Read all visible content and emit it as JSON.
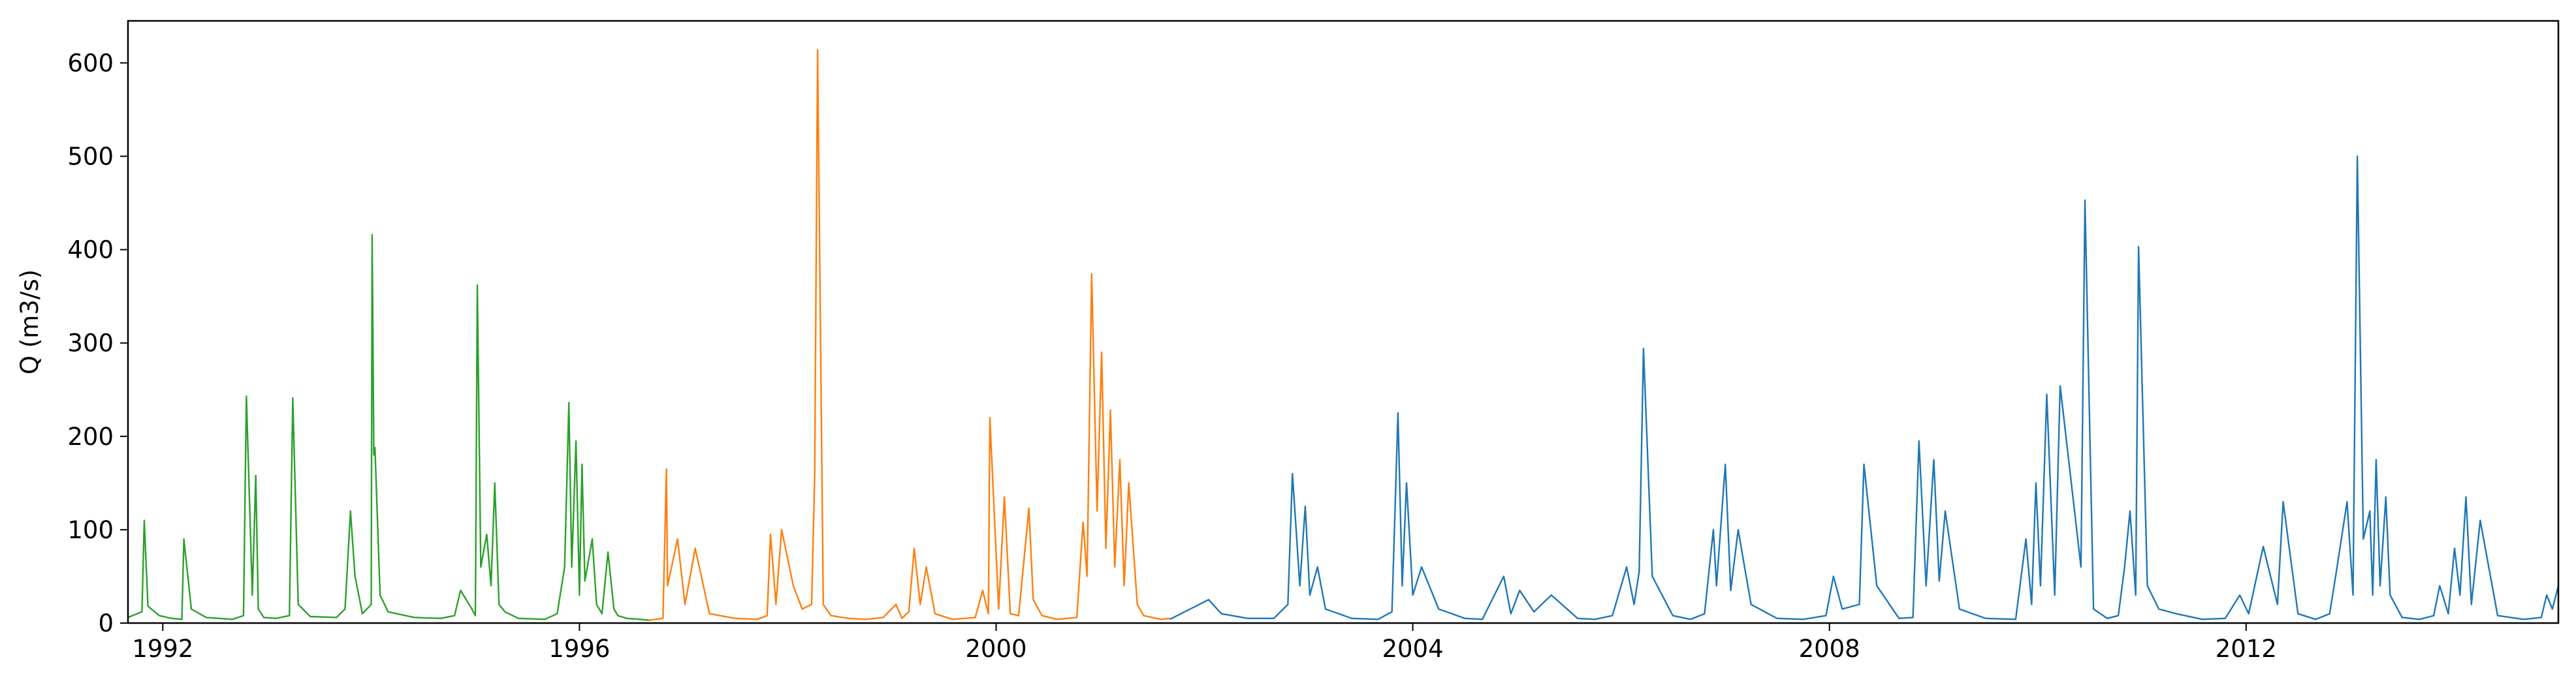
{
  "chart_data": {
    "type": "line",
    "title": "",
    "xlabel": "",
    "ylabel": "Q (m3/s)",
    "xlim": [
      "1991-09-01",
      "2014-12-31"
    ],
    "ylim": [
      0,
      645
    ],
    "x_ticks": [
      "1992",
      "1996",
      "2000",
      "2004",
      "2008",
      "2012"
    ],
    "y_ticks": [
      0,
      100,
      200,
      300,
      400,
      500,
      600
    ],
    "grid": false,
    "legend": "none",
    "series": [
      {
        "color": "#2ca02c",
        "x": [
          "1991-09-01",
          "1991-10-20",
          "1991-10-28",
          "1991-11-10",
          "1991-12-20",
          "1992-02-01",
          "1992-03-08",
          "1992-03-15",
          "1992-04-10",
          "1992-06-01",
          "1992-09-01",
          "1992-10-10",
          "1992-10-20",
          "1992-11-10",
          "1992-11-22",
          "1992-12-01",
          "1992-12-20",
          "1993-02-01",
          "1993-03-20",
          "1993-04-01",
          "1993-04-20",
          "1993-06-01",
          "1993-09-01",
          "1993-10-01",
          "1993-10-20",
          "1993-11-05",
          "1993-12-01",
          "1994-01-01",
          "1994-01-04",
          "1994-01-10",
          "1994-01-14",
          "1994-02-01",
          "1994-03-01",
          "1994-06-01",
          "1994-09-01",
          "1994-10-20",
          "1994-11-10",
          "1994-12-20",
          "1995-01-01",
          "1995-01-08",
          "1995-01-20",
          "1995-02-10",
          "1995-02-25",
          "1995-03-10",
          "1995-03-25",
          "1995-04-15",
          "1995-06-01",
          "1995-09-01",
          "1995-10-15",
          "1995-11-10",
          "1995-11-25",
          "1995-12-05",
          "1995-12-20",
          "1996-01-01",
          "1996-01-10",
          "1996-01-20",
          "1996-02-15",
          "1996-03-01",
          "1996-03-20",
          "1996-04-10",
          "1996-05-01",
          "1996-05-15",
          "1996-06-15",
          "1996-08-01",
          "1996-09-01"
        ],
        "y": [
          6,
          12,
          110,
          18,
          8,
          5,
          4,
          90,
          15,
          6,
          4,
          8,
          243,
          30,
          158,
          15,
          6,
          5,
          8,
          241,
          20,
          7,
          6,
          15,
          120,
          50,
          10,
          20,
          416,
          180,
          188,
          30,
          12,
          6,
          5,
          8,
          35,
          15,
          8,
          362,
          60,
          95,
          40,
          150,
          20,
          12,
          5,
          4,
          10,
          60,
          236,
          60,
          195,
          30,
          170,
          45,
          90,
          20,
          10,
          76,
          15,
          8,
          5,
          4,
          3
        ]
      },
      {
        "color": "#ff7f0e",
        "x": [
          "1996-09-01",
          "1996-10-20",
          "1996-11-01",
          "1996-11-05",
          "1996-12-10",
          "1997-01-05",
          "1997-02-10",
          "1997-04-01",
          "1997-07-01",
          "1997-09-15",
          "1997-10-20",
          "1997-11-01",
          "1997-11-20",
          "1997-12-10",
          "1998-01-20",
          "1998-02-20",
          "1998-03-25",
          "1998-04-05",
          "1998-04-15",
          "1998-05-05",
          "1998-06-01",
          "1998-08-01",
          "1998-10-01",
          "1998-12-01",
          "1999-01-15",
          "1999-02-05",
          "1999-03-01",
          "1999-03-20",
          "1999-04-10",
          "1999-05-01",
          "1999-06-01",
          "1999-08-01",
          "1999-10-20",
          "1999-11-15",
          "1999-12-05",
          "1999-12-10",
          "2000-01-10",
          "2000-01-30",
          "2000-02-20",
          "2000-03-20",
          "2000-04-25",
          "2000-05-10",
          "2000-06-10",
          "2000-08-01",
          "2000-10-10",
          "2000-11-01",
          "2000-11-15",
          "2000-12-01",
          "2000-12-20",
          "2001-01-05",
          "2001-01-20",
          "2001-02-05",
          "2001-02-20",
          "2001-03-10",
          "2001-03-25",
          "2001-04-10",
          "2001-05-10",
          "2001-06-01",
          "2001-08-01",
          "2001-09-01"
        ],
        "y": [
          3,
          5,
          165,
          40,
          90,
          20,
          80,
          10,
          5,
          4,
          8,
          95,
          20,
          100,
          40,
          15,
          20,
          160,
          614,
          20,
          8,
          5,
          4,
          6,
          20,
          5,
          12,
          80,
          20,
          60,
          10,
          4,
          6,
          35,
          10,
          220,
          15,
          135,
          10,
          8,
          123,
          25,
          8,
          4,
          6,
          108,
          50,
          374,
          120,
          290,
          80,
          228,
          60,
          175,
          40,
          150,
          20,
          8,
          4,
          5
        ]
      },
      {
        "color": "#1f77b4",
        "x": [
          "2001-09-01",
          "2002-01-15",
          "2002-03-01",
          "2002-06-01",
          "2002-09-01",
          "2002-10-20",
          "2002-11-05",
          "2002-12-01",
          "2002-12-20",
          "2003-01-05",
          "2003-02-01",
          "2003-03-01",
          "2003-06-01",
          "2003-09-01",
          "2003-10-20",
          "2003-11-10",
          "2003-11-25",
          "2003-12-10",
          "2004-01-01",
          "2004-02-01",
          "2004-04-01",
          "2004-07-01",
          "2004-09-01",
          "2004-11-15",
          "2004-12-10",
          "2005-01-10",
          "2005-03-01",
          "2005-05-01",
          "2005-08-01",
          "2005-10-01",
          "2005-12-01",
          "2006-01-20",
          "2006-02-15",
          "2006-03-05",
          "2006-03-20",
          "2006-04-20",
          "2006-07-01",
          "2006-09-01",
          "2006-10-20",
          "2006-11-20",
          "2006-12-01",
          "2007-01-01",
          "2007-01-20",
          "2007-02-15",
          "2007-04-01",
          "2007-07-01",
          "2007-10-01",
          "2007-12-20",
          "2008-01-15",
          "2008-02-15",
          "2008-04-15",
          "2008-05-01",
          "2008-06-15",
          "2008-09-01",
          "2008-10-20",
          "2008-11-10",
          "2008-12-05",
          "2009-01-01",
          "2009-01-20",
          "2009-02-10",
          "2009-04-01",
          "2009-07-01",
          "2009-10-15",
          "2009-11-20",
          "2009-12-10",
          "2009-12-25",
          "2010-01-10",
          "2010-02-01",
          "2010-03-01",
          "2010-03-20",
          "2010-06-01",
          "2010-06-15",
          "2010-07-15",
          "2010-09-01",
          "2010-10-10",
          "2010-11-01",
          "2010-11-20",
          "2010-12-10",
          "2010-12-20",
          "2011-01-20",
          "2011-03-01",
          "2011-05-01",
          "2011-08-01",
          "2011-10-20",
          "2011-12-10",
          "2012-01-10",
          "2012-03-01",
          "2012-04-20",
          "2012-05-10",
          "2012-07-01",
          "2012-09-01",
          "2012-10-20",
          "2012-11-15",
          "2012-12-20",
          "2013-01-10",
          "2013-01-25",
          "2013-02-15",
          "2013-03-10",
          "2013-03-20",
          "2013-04-01",
          "2013-04-15",
          "2013-05-05",
          "2013-05-20",
          "2013-07-01",
          "2013-09-01",
          "2013-10-20",
          "2013-11-10",
          "2013-12-10",
          "2014-01-01",
          "2014-01-20",
          "2014-02-10",
          "2014-03-01",
          "2014-04-01",
          "2014-06-01",
          "2014-09-01",
          "2014-11-01",
          "2014-11-20",
          "2014-12-10",
          "2014-12-31"
        ],
        "y": [
          4,
          25,
          10,
          5,
          5,
          20,
          160,
          40,
          125,
          30,
          60,
          15,
          5,
          4,
          12,
          225,
          40,
          150,
          30,
          60,
          15,
          5,
          4,
          50,
          10,
          35,
          12,
          30,
          5,
          4,
          8,
          60,
          20,
          55,
          294,
          50,
          8,
          4,
          10,
          100,
          40,
          170,
          35,
          100,
          20,
          5,
          4,
          8,
          50,
          15,
          20,
          170,
          40,
          5,
          6,
          195,
          40,
          175,
          45,
          120,
          15,
          5,
          4,
          90,
          20,
          150,
          40,
          245,
          30,
          254,
          60,
          453,
          15,
          5,
          8,
          60,
          120,
          30,
          403,
          40,
          15,
          10,
          4,
          5,
          30,
          10,
          82,
          20,
          130,
          10,
          4,
          10,
          60,
          130,
          30,
          500,
          90,
          120,
          30,
          175,
          40,
          135,
          30,
          6,
          4,
          8,
          40,
          10,
          80,
          30,
          135,
          20,
          110,
          8,
          4,
          6,
          30,
          15,
          40
        ]
      }
    ]
  }
}
